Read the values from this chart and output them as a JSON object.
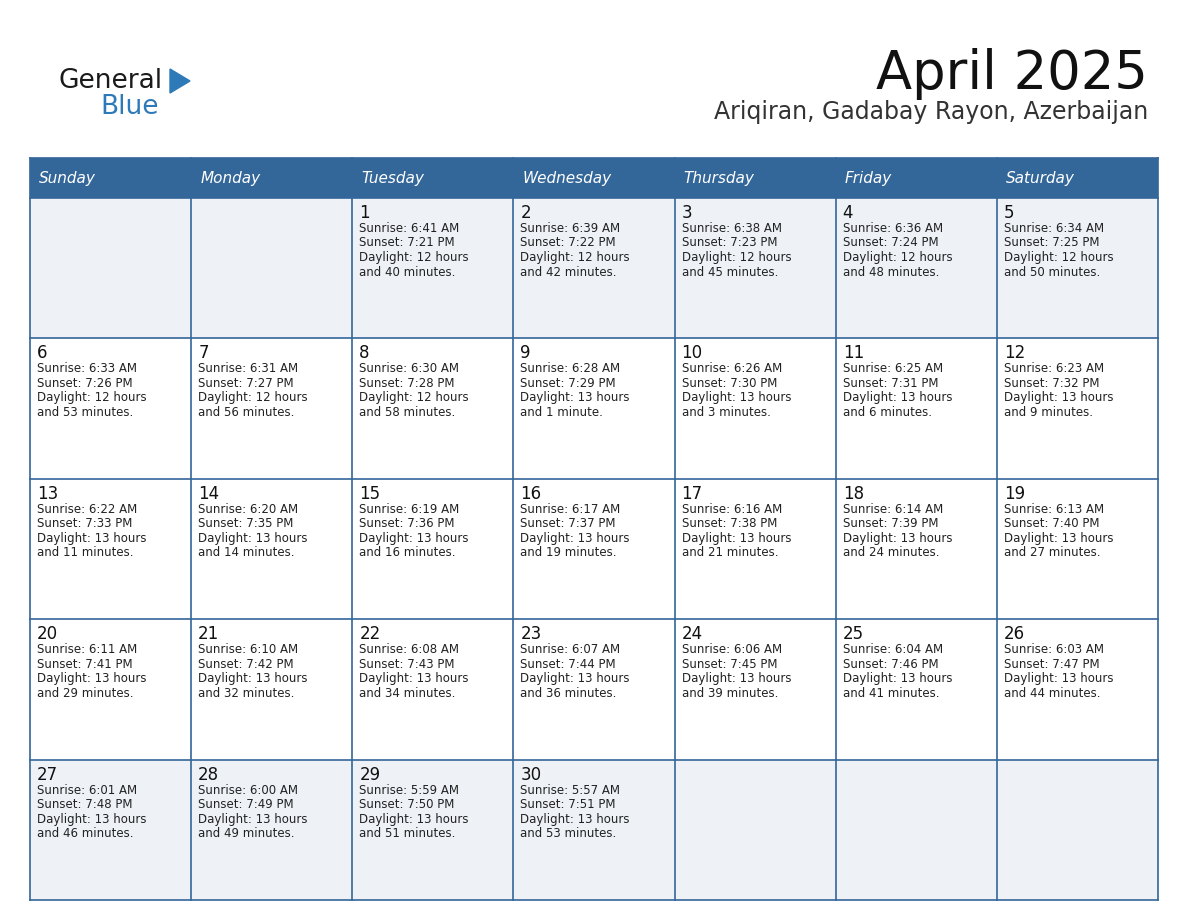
{
  "title": "April 2025",
  "subtitle": "Ariqiran, Gadabay Rayon, Azerbaijan",
  "days_of_week": [
    "Sunday",
    "Monday",
    "Tuesday",
    "Wednesday",
    "Thursday",
    "Friday",
    "Saturday"
  ],
  "header_bg": "#336699",
  "header_text": "#FFFFFF",
  "row_bg_light": "#EEF2F7",
  "row_bg_white": "#FFFFFF",
  "cell_border_color": "#336699",
  "day_num_color": "#111111",
  "info_text_color": "#222222",
  "title_color": "#111111",
  "subtitle_color": "#333333",
  "logo_color_general": "#1a1a1a",
  "logo_color_blue": "#2E7AB8",
  "logo_triangle_color": "#2E7AB8",
  "calendar": [
    [
      {
        "day": null,
        "info": ""
      },
      {
        "day": null,
        "info": ""
      },
      {
        "day": 1,
        "info": "Sunrise: 6:41 AM\nSunset: 7:21 PM\nDaylight: 12 hours\nand 40 minutes."
      },
      {
        "day": 2,
        "info": "Sunrise: 6:39 AM\nSunset: 7:22 PM\nDaylight: 12 hours\nand 42 minutes."
      },
      {
        "day": 3,
        "info": "Sunrise: 6:38 AM\nSunset: 7:23 PM\nDaylight: 12 hours\nand 45 minutes."
      },
      {
        "day": 4,
        "info": "Sunrise: 6:36 AM\nSunset: 7:24 PM\nDaylight: 12 hours\nand 48 minutes."
      },
      {
        "day": 5,
        "info": "Sunrise: 6:34 AM\nSunset: 7:25 PM\nDaylight: 12 hours\nand 50 minutes."
      }
    ],
    [
      {
        "day": 6,
        "info": "Sunrise: 6:33 AM\nSunset: 7:26 PM\nDaylight: 12 hours\nand 53 minutes."
      },
      {
        "day": 7,
        "info": "Sunrise: 6:31 AM\nSunset: 7:27 PM\nDaylight: 12 hours\nand 56 minutes."
      },
      {
        "day": 8,
        "info": "Sunrise: 6:30 AM\nSunset: 7:28 PM\nDaylight: 12 hours\nand 58 minutes."
      },
      {
        "day": 9,
        "info": "Sunrise: 6:28 AM\nSunset: 7:29 PM\nDaylight: 13 hours\nand 1 minute."
      },
      {
        "day": 10,
        "info": "Sunrise: 6:26 AM\nSunset: 7:30 PM\nDaylight: 13 hours\nand 3 minutes."
      },
      {
        "day": 11,
        "info": "Sunrise: 6:25 AM\nSunset: 7:31 PM\nDaylight: 13 hours\nand 6 minutes."
      },
      {
        "day": 12,
        "info": "Sunrise: 6:23 AM\nSunset: 7:32 PM\nDaylight: 13 hours\nand 9 minutes."
      }
    ],
    [
      {
        "day": 13,
        "info": "Sunrise: 6:22 AM\nSunset: 7:33 PM\nDaylight: 13 hours\nand 11 minutes."
      },
      {
        "day": 14,
        "info": "Sunrise: 6:20 AM\nSunset: 7:35 PM\nDaylight: 13 hours\nand 14 minutes."
      },
      {
        "day": 15,
        "info": "Sunrise: 6:19 AM\nSunset: 7:36 PM\nDaylight: 13 hours\nand 16 minutes."
      },
      {
        "day": 16,
        "info": "Sunrise: 6:17 AM\nSunset: 7:37 PM\nDaylight: 13 hours\nand 19 minutes."
      },
      {
        "day": 17,
        "info": "Sunrise: 6:16 AM\nSunset: 7:38 PM\nDaylight: 13 hours\nand 21 minutes."
      },
      {
        "day": 18,
        "info": "Sunrise: 6:14 AM\nSunset: 7:39 PM\nDaylight: 13 hours\nand 24 minutes."
      },
      {
        "day": 19,
        "info": "Sunrise: 6:13 AM\nSunset: 7:40 PM\nDaylight: 13 hours\nand 27 minutes."
      }
    ],
    [
      {
        "day": 20,
        "info": "Sunrise: 6:11 AM\nSunset: 7:41 PM\nDaylight: 13 hours\nand 29 minutes."
      },
      {
        "day": 21,
        "info": "Sunrise: 6:10 AM\nSunset: 7:42 PM\nDaylight: 13 hours\nand 32 minutes."
      },
      {
        "day": 22,
        "info": "Sunrise: 6:08 AM\nSunset: 7:43 PM\nDaylight: 13 hours\nand 34 minutes."
      },
      {
        "day": 23,
        "info": "Sunrise: 6:07 AM\nSunset: 7:44 PM\nDaylight: 13 hours\nand 36 minutes."
      },
      {
        "day": 24,
        "info": "Sunrise: 6:06 AM\nSunset: 7:45 PM\nDaylight: 13 hours\nand 39 minutes."
      },
      {
        "day": 25,
        "info": "Sunrise: 6:04 AM\nSunset: 7:46 PM\nDaylight: 13 hours\nand 41 minutes."
      },
      {
        "day": 26,
        "info": "Sunrise: 6:03 AM\nSunset: 7:47 PM\nDaylight: 13 hours\nand 44 minutes."
      }
    ],
    [
      {
        "day": 27,
        "info": "Sunrise: 6:01 AM\nSunset: 7:48 PM\nDaylight: 13 hours\nand 46 minutes."
      },
      {
        "day": 28,
        "info": "Sunrise: 6:00 AM\nSunset: 7:49 PM\nDaylight: 13 hours\nand 49 minutes."
      },
      {
        "day": 29,
        "info": "Sunrise: 5:59 AM\nSunset: 7:50 PM\nDaylight: 13 hours\nand 51 minutes."
      },
      {
        "day": 30,
        "info": "Sunrise: 5:57 AM\nSunset: 7:51 PM\nDaylight: 13 hours\nand 53 minutes."
      },
      {
        "day": null,
        "info": ""
      },
      {
        "day": null,
        "info": ""
      },
      {
        "day": null,
        "info": ""
      }
    ]
  ],
  "row_bg_pattern": [
    1,
    0,
    0,
    0,
    1
  ]
}
